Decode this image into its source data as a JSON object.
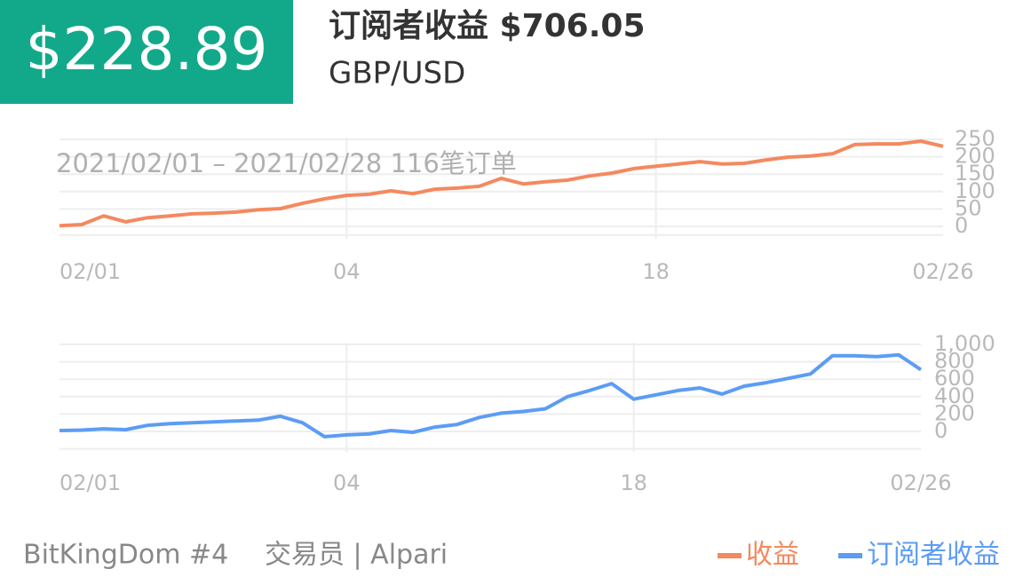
{
  "header": {
    "badge": "$228.89",
    "title": "订阅者收益 $706.05",
    "pair": "GBP/USD"
  },
  "footer": {
    "name": "BitKingDom #4",
    "trader": "交易员 | Alpari"
  },
  "chart_data": [
    {
      "type": "line",
      "subtitle": "2021/02/01 – 2021/02/28  116笔订单",
      "categories": [
        "02/01",
        null,
        null,
        null,
        null,
        null,
        null,
        null,
        null,
        null,
        null,
        null,
        null,
        "04",
        null,
        null,
        null,
        null,
        null,
        null,
        null,
        null,
        null,
        null,
        null,
        null,
        null,
        "18",
        null,
        null,
        null,
        null,
        null,
        null,
        null,
        null,
        null,
        null,
        null,
        null,
        "02/26"
      ],
      "series": [
        {
          "name": "收益",
          "color": "#f4895f",
          "values": [
            2,
            5,
            30,
            13,
            25,
            30,
            36,
            38,
            41,
            48,
            51,
            66,
            79,
            89,
            92,
            102,
            94,
            107,
            110,
            115,
            138,
            122,
            128,
            133,
            145,
            153,
            166,
            173,
            179,
            186,
            179,
            181,
            191,
            199,
            202,
            209,
            235,
            237,
            237,
            245,
            230
          ]
        }
      ],
      "ylim": [
        -25,
        250
      ],
      "yticks": [
        0,
        50,
        100,
        150,
        200,
        250
      ],
      "grid": true
    },
    {
      "type": "line",
      "categories": [
        "02/01",
        null,
        null,
        null,
        null,
        null,
        null,
        null,
        null,
        null,
        null,
        null,
        null,
        "04",
        null,
        null,
        null,
        null,
        null,
        null,
        null,
        null,
        null,
        null,
        null,
        null,
        "18",
        null,
        null,
        null,
        null,
        null,
        null,
        null,
        null,
        null,
        null,
        null,
        null,
        "02/26"
      ],
      "series": [
        {
          "name": "订阅者收益",
          "color": "#5c9cf5",
          "values": [
            10,
            15,
            30,
            20,
            70,
            90,
            100,
            110,
            120,
            130,
            175,
            100,
            -60,
            -40,
            -30,
            10,
            -10,
            50,
            80,
            160,
            210,
            230,
            260,
            400,
            470,
            550,
            370,
            420,
            470,
            500,
            430,
            520,
            560,
            610,
            660,
            870,
            870,
            860,
            880,
            710
          ]
        }
      ],
      "ylim": [
        -200,
        1000
      ],
      "yticks": [
        0,
        200,
        400,
        600,
        800,
        {
          "value": 1000,
          "label": "1,000"
        }
      ],
      "grid": true
    }
  ]
}
